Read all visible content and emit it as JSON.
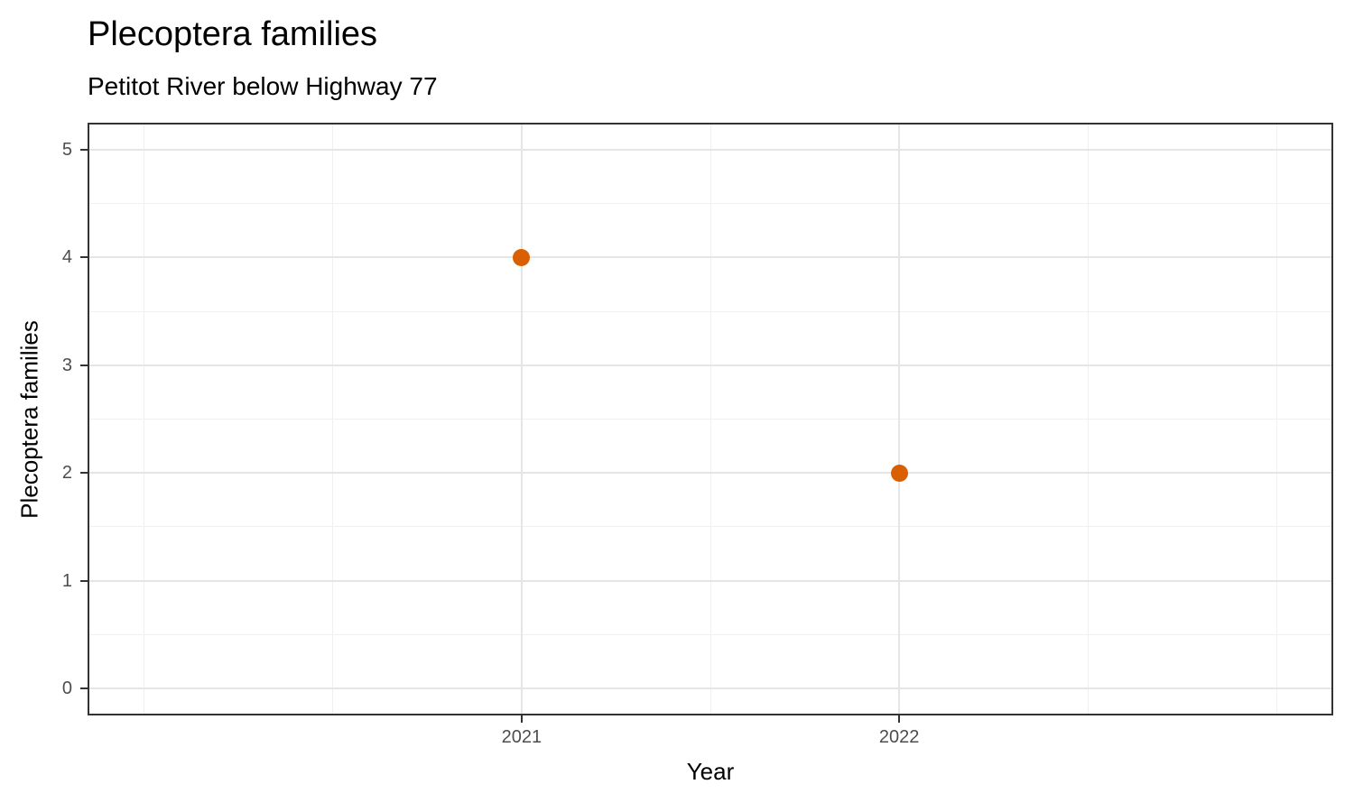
{
  "chart_data": {
    "type": "scatter",
    "title": "Plecoptera families",
    "subtitle": "Petitot River below Highway 77",
    "xlabel": "Year",
    "ylabel": "Plecoptera families",
    "series": [
      {
        "name": "Plecoptera families",
        "points": [
          {
            "x": 2021,
            "y": 4
          },
          {
            "x": 2022,
            "y": 2
          }
        ]
      }
    ],
    "x_ticks": [
      {
        "value": 2021,
        "label": "2021"
      },
      {
        "value": 2022,
        "label": "2022"
      }
    ],
    "y_ticks": [
      {
        "value": 0,
        "label": "0"
      },
      {
        "value": 1,
        "label": "1"
      },
      {
        "value": 2,
        "label": "2"
      },
      {
        "value": 3,
        "label": "3"
      },
      {
        "value": 4,
        "label": "4"
      },
      {
        "value": 5,
        "label": "5"
      }
    ],
    "x_minor": [
      2020,
      2020.5,
      2021.5,
      2022.5,
      2023
    ],
    "y_minor": [
      0.5,
      1.5,
      2.5,
      3.5,
      4.5
    ],
    "xlim": [
      2019.85,
      2023.15
    ],
    "ylim": [
      -0.25,
      5.25
    ],
    "grid": "major-and-minor",
    "legend": "none",
    "colors": {
      "point": "#D95F02",
      "grid_major": "#E5E5E5",
      "grid_minor": "#F0F0F0",
      "axis_text": "#4D4D4D",
      "tick": "#333333",
      "panel_border": "#333333",
      "text": "#000000",
      "background": "#FFFFFF"
    }
  }
}
